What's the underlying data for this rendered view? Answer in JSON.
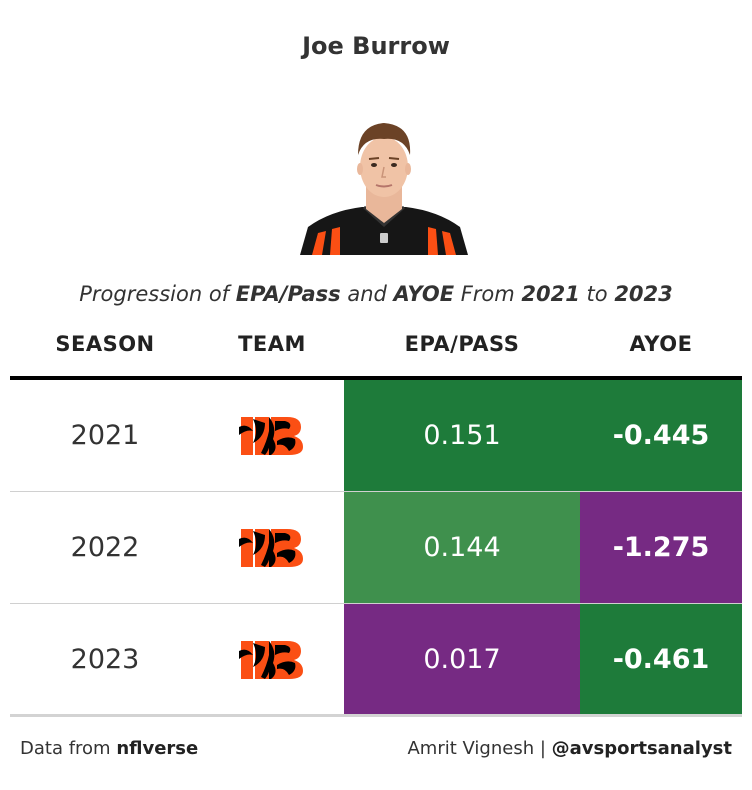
{
  "header": {
    "title": "Joe Burrow",
    "subtitle": {
      "p1": "Progression of ",
      "b1": "EPA/Pass",
      "p2": " and ",
      "b2": "AYOE",
      "p3": " From ",
      "b3": "2021",
      "p4": " to ",
      "b4": "2023"
    }
  },
  "columns": [
    "SEASON",
    "TEAM",
    "EPA/PASS",
    "AYOE"
  ],
  "chart_data": {
    "type": "table",
    "title": "Joe Burrow",
    "columns": [
      "SEASON",
      "TEAM",
      "EPA/PASS",
      "AYOE"
    ],
    "rows": [
      {
        "season": "2021",
        "team": "CIN",
        "epa_pass": "0.151",
        "ayoe": "-0.445",
        "epa_color": "#1e7b3a",
        "ayoe_color": "#1e7b3a"
      },
      {
        "season": "2022",
        "team": "CIN",
        "epa_pass": "0.144",
        "ayoe": "-1.275",
        "epa_color": "#3f904d",
        "ayoe_color": "#762a83"
      },
      {
        "season": "2023",
        "team": "CIN",
        "epa_pass": "0.017",
        "ayoe": "-0.461",
        "epa_color": "#762a83",
        "ayoe_color": "#1e7b3a"
      }
    ]
  },
  "team_logo_icon": "bengals-logo-icon",
  "colors": {
    "bengals_orange": "#fb4f14",
    "bengals_black": "#000000"
  },
  "footer": {
    "left_prefix": "Data from ",
    "left_source": "nflverse",
    "right_prefix": "Amrit Vignesh | ",
    "right_handle": "@avsportsanalyst"
  }
}
